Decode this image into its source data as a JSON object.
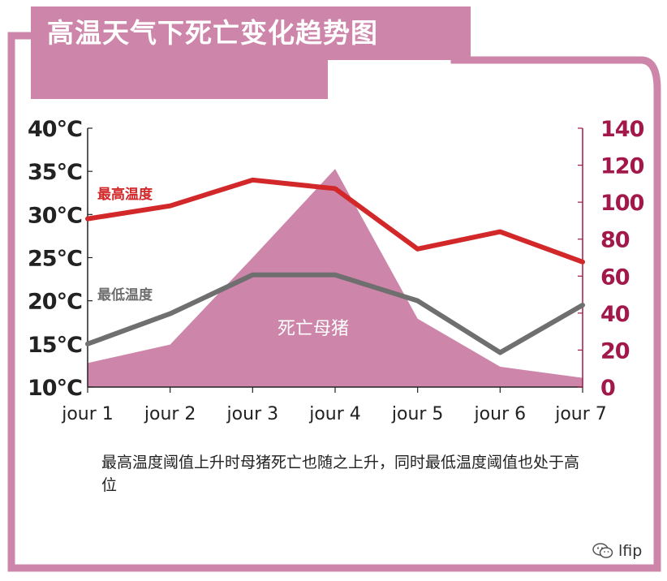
{
  "title": "高温天气下死亡变化趋势图",
  "caption": "最高温度阈值上升时母猪死亡也随之上升，同时最低温度阈值也处于高位",
  "watermark": "lfip",
  "colors": {
    "frame": "#cd86aa",
    "area": "#cd86aa",
    "max_line": "#d2282a",
    "min_line": "#6f6f6f",
    "right_axis": "#a3184a",
    "left_axis": "#222222"
  },
  "chart_data": {
    "type": "line",
    "categories": [
      "jour 1",
      "jour 2",
      "jour 3",
      "jour 4",
      "jour 5",
      "jour 6",
      "jour 7"
    ],
    "left_axis": {
      "ylim": [
        10,
        40
      ],
      "ticks": [
        10,
        15,
        20,
        25,
        30,
        35,
        40
      ],
      "tick_labels": [
        "10°C",
        "15°C",
        "20°C",
        "25°C",
        "30°C",
        "35°C",
        "40°C"
      ]
    },
    "right_axis": {
      "ylim": [
        0,
        140
      ],
      "ticks": [
        0,
        20,
        40,
        60,
        80,
        100,
        120,
        140
      ],
      "tick_labels": [
        "0",
        "20",
        "40",
        "60",
        "80",
        "100",
        "120",
        "140"
      ]
    },
    "series": [
      {
        "name": "最高温度",
        "kind": "line",
        "axis": "left",
        "values": [
          29.5,
          31,
          34,
          33,
          26,
          28,
          24.5
        ]
      },
      {
        "name": "最低温度",
        "kind": "line",
        "axis": "left",
        "values": [
          15,
          18.5,
          23,
          23,
          20,
          14,
          19.5
        ]
      },
      {
        "name": "死亡母猪",
        "kind": "area",
        "axis": "right",
        "values": [
          13,
          23,
          70,
          118,
          37,
          11,
          5
        ]
      }
    ]
  }
}
